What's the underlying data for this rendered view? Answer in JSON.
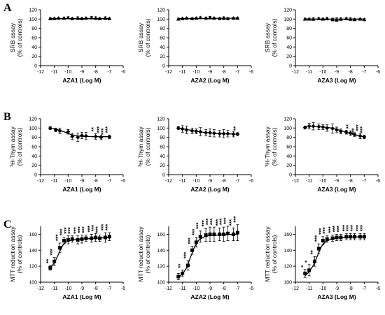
{
  "panel_letters": [
    "A",
    "B",
    "C"
  ],
  "chart_data": [
    {
      "type": "line",
      "row": 0,
      "col": 0,
      "xlabel": "AZA1 (Log M)",
      "ylabel_lines": [
        "SRB assay",
        "(% of controls)"
      ],
      "xlim": [
        -12,
        -6
      ],
      "xticks": [
        -12,
        -11,
        -10,
        -9,
        -8,
        -7,
        -6
      ],
      "ylim": [
        0,
        120
      ],
      "yticks": [
        0,
        20,
        40,
        60,
        80,
        100,
        120
      ],
      "marker": "triangle",
      "x": [
        -11.3,
        -11.0,
        -10.7,
        -10.3,
        -10.0,
        -9.7,
        -9.3,
        -9.0,
        -8.7,
        -8.3,
        -8.0,
        -7.7,
        -7.3,
        -7.0
      ],
      "y": [
        101,
        101,
        102,
        102,
        103,
        101,
        102,
        101,
        102,
        103,
        102,
        101,
        102,
        101
      ],
      "err": [
        2,
        2,
        2,
        2,
        2,
        2,
        3,
        2,
        2,
        3,
        3,
        2,
        3,
        2
      ],
      "fit": [
        [
          -11.3,
          101
        ],
        [
          -7.0,
          101
        ]
      ],
      "stars": []
    },
    {
      "type": "line",
      "row": 0,
      "col": 1,
      "xlabel": "AZA2 (Log M)",
      "ylabel_lines": [
        "SRB assay",
        "(% of controls)"
      ],
      "xlim": [
        -12,
        -6
      ],
      "xticks": [
        -12,
        -11,
        -10,
        -9,
        -8,
        -7,
        -6
      ],
      "ylim": [
        0,
        120
      ],
      "yticks": [
        0,
        20,
        40,
        60,
        80,
        100,
        120
      ],
      "marker": "triangle",
      "x": [
        -11.3,
        -11.0,
        -10.7,
        -10.3,
        -10.0,
        -9.7,
        -9.3,
        -9.0,
        -8.7,
        -8.3,
        -8.0,
        -7.7,
        -7.3,
        -7.0
      ],
      "y": [
        100,
        101,
        102,
        101,
        102,
        103,
        102,
        103,
        102,
        101,
        102,
        101,
        102,
        102
      ],
      "err": [
        2,
        2,
        2,
        2,
        2,
        2,
        2,
        3,
        2,
        2,
        3,
        2,
        2,
        2
      ],
      "fit": [
        [
          -11.3,
          101
        ],
        [
          -7.0,
          102
        ]
      ],
      "stars": []
    },
    {
      "type": "line",
      "row": 0,
      "col": 2,
      "xlabel": "AZA3 (Log M)",
      "ylabel_lines": [
        "SRB assay",
        "(% of controls)"
      ],
      "xlim": [
        -12,
        -6
      ],
      "xticks": [
        -12,
        -11,
        -10,
        -9,
        -8,
        -7,
        -6
      ],
      "ylim": [
        0,
        120
      ],
      "yticks": [
        0,
        20,
        40,
        60,
        80,
        100,
        120
      ],
      "marker": "triangle",
      "x": [
        -11.3,
        -11.0,
        -10.7,
        -10.3,
        -10.0,
        -9.7,
        -9.3,
        -9.0,
        -8.7,
        -8.3,
        -8.0,
        -7.7,
        -7.3,
        -7.0
      ],
      "y": [
        100,
        100,
        100,
        101,
        100,
        101,
        99,
        99,
        100,
        101,
        100,
        99,
        100,
        99
      ],
      "err": [
        2,
        2,
        3,
        2,
        2,
        3,
        3,
        4,
        3,
        2,
        3,
        2,
        2,
        2
      ],
      "fit": [
        [
          -11.3,
          100
        ],
        [
          -7.0,
          100
        ]
      ],
      "stars": []
    },
    {
      "type": "line",
      "row": 1,
      "col": 0,
      "xlabel": "AZA1 (Log M)",
      "ylabel_lines": [
        "³H-Thym assay",
        "(% of controls)"
      ],
      "xlim": [
        -12,
        -6
      ],
      "xticks": [
        -12,
        -11,
        -10,
        -9,
        -8,
        -7,
        -6
      ],
      "ylim": [
        0,
        120
      ],
      "yticks": [
        0,
        20,
        40,
        60,
        80,
        100,
        120
      ],
      "marker": "diamond",
      "x": [
        -11.3,
        -10.9,
        -10.6,
        -10.0,
        -9.7,
        -9.3,
        -9.0,
        -8.7,
        -8.0,
        -7.6,
        -7.0
      ],
      "y": [
        100,
        96,
        94,
        92,
        82,
        80,
        84,
        83,
        82,
        80,
        81
      ],
      "err": [
        3,
        4,
        6,
        5,
        7,
        9,
        7,
        8,
        6,
        5,
        4
      ],
      "fit": [
        [
          -11.3,
          100
        ],
        [
          -10.8,
          97
        ],
        [
          -10.3,
          92
        ],
        [
          -9.8,
          86
        ],
        [
          -9.3,
          83
        ],
        [
          -8.8,
          82
        ],
        [
          -8.0,
          81.5
        ],
        [
          -7.0,
          81.5
        ]
      ],
      "stars": [
        {
          "x": -8.0,
          "text": "**"
        },
        {
          "x": -7.6,
          "text": "***"
        },
        {
          "x": -7.3,
          "text": "***"
        },
        {
          "x": -7.0,
          "text": "***"
        }
      ]
    },
    {
      "type": "line",
      "row": 1,
      "col": 1,
      "xlabel": "AZA2 (Log M)",
      "ylabel_lines": [
        "³H-Thym assay",
        "(% of controls)"
      ],
      "xlim": [
        -12,
        -6
      ],
      "xticks": [
        -12,
        -11,
        -10,
        -9,
        -8,
        -7,
        -6
      ],
      "ylim": [
        0,
        120
      ],
      "yticks": [
        0,
        20,
        40,
        60,
        80,
        100,
        120
      ],
      "marker": "diamond",
      "x": [
        -11.3,
        -11.0,
        -10.7,
        -10.3,
        -10.0,
        -9.7,
        -9.3,
        -9.0,
        -8.7,
        -8.3,
        -8.0,
        -7.7,
        -7.3,
        -7.0
      ],
      "y": [
        100,
        98,
        96,
        94,
        93,
        92,
        90,
        90,
        89,
        88,
        88,
        88,
        87,
        87
      ],
      "err": [
        3,
        7,
        8,
        6,
        5,
        9,
        7,
        8,
        8,
        7,
        9,
        7,
        6,
        3
      ],
      "fit": [
        [
          -11.3,
          100
        ],
        [
          -10.5,
          96
        ],
        [
          -9.5,
          91
        ],
        [
          -8.5,
          88
        ],
        [
          -7.0,
          87
        ]
      ],
      "stars": [
        {
          "x": -7.0,
          "text": "**"
        }
      ]
    },
    {
      "type": "line",
      "row": 1,
      "col": 2,
      "xlabel": "AZA3 (Log M)",
      "ylabel_lines": [
        "³H-Thym assay",
        "(% of controls)"
      ],
      "xlim": [
        -12,
        -6
      ],
      "xticks": [
        -12,
        -11,
        -10,
        -9,
        -8,
        -7,
        -6
      ],
      "ylim": [
        0,
        120
      ],
      "yticks": [
        0,
        20,
        40,
        60,
        80,
        100,
        120
      ],
      "marker": "diamond",
      "x": [
        -11.3,
        -11.0,
        -10.7,
        -10.3,
        -10.0,
        -9.7,
        -9.3,
        -9.0,
        -8.7,
        -8.3,
        -8.0,
        -7.7,
        -7.3,
        -7.0
      ],
      "y": [
        101,
        104,
        104,
        103,
        102,
        100,
        99,
        96,
        93,
        91,
        89,
        86,
        83,
        81
      ],
      "err": [
        3,
        6,
        8,
        6,
        5,
        7,
        10,
        6,
        5,
        4,
        5,
        4,
        6,
        4
      ],
      "fit": [
        [
          -11.3,
          104
        ],
        [
          -10.3,
          103.5
        ],
        [
          -9.3,
          100
        ],
        [
          -8.6,
          94
        ],
        [
          -8.0,
          88
        ],
        [
          -7.5,
          84
        ],
        [
          -7.0,
          81
        ]
      ],
      "stars": [
        {
          "x": -8.0,
          "text": "**"
        },
        {
          "x": -7.6,
          "text": "***"
        },
        {
          "x": -7.3,
          "text": "***"
        },
        {
          "x": -7.0,
          "text": "***"
        }
      ]
    },
    {
      "type": "line",
      "row": 2,
      "col": 0,
      "xlabel": "AZA1 (Log M)",
      "ylabel_lines": [
        "MTT reduction assay",
        "(% of controls)"
      ],
      "xlim": [
        -12,
        -6
      ],
      "xticks": [
        -12,
        -11,
        -10,
        -9,
        -8,
        -7,
        -6
      ],
      "ylim": [
        100,
        170
      ],
      "yticks": [
        100,
        120,
        140,
        160
      ],
      "marker": "square",
      "x": [
        -11.3,
        -11.0,
        -10.6,
        -10.3,
        -10.0,
        -9.7,
        -9.3,
        -9.0,
        -8.7,
        -8.3,
        -8.0,
        -7.7,
        -7.3,
        -7.0
      ],
      "y": [
        118,
        126,
        143,
        152,
        153,
        154,
        153,
        154,
        155,
        155,
        156,
        155,
        156,
        157
      ],
      "err": [
        3,
        5,
        6,
        4,
        5,
        4,
        5,
        5,
        4,
        5,
        5,
        4,
        6,
        5
      ],
      "fit": [
        [
          -11.3,
          118
        ],
        [
          -11.0,
          124
        ],
        [
          -10.7,
          135
        ],
        [
          -10.4,
          146
        ],
        [
          -10.1,
          151
        ],
        [
          -9.7,
          153
        ],
        [
          -9.0,
          154
        ],
        [
          -8.0,
          155
        ],
        [
          -7.0,
          156
        ]
      ],
      "stars": [
        {
          "x": -11.3,
          "text": "**"
        },
        {
          "x": -11.0,
          "text": "***"
        },
        {
          "x": -10.6,
          "text": "***"
        },
        {
          "x": -10.3,
          "text": "***"
        },
        {
          "x": -10.0,
          "text": "***"
        },
        {
          "x": -9.7,
          "text": "***"
        },
        {
          "x": -9.3,
          "text": "***"
        },
        {
          "x": -9.0,
          "text": "***"
        },
        {
          "x": -8.7,
          "text": "***"
        },
        {
          "x": -8.3,
          "text": "***"
        },
        {
          "x": -8.0,
          "text": "***"
        },
        {
          "x": -7.7,
          "text": "***"
        },
        {
          "x": -7.3,
          "text": "***"
        },
        {
          "x": -7.0,
          "text": "***"
        }
      ]
    },
    {
      "type": "line",
      "row": 2,
      "col": 1,
      "xlabel": "AZA2 (Log M)",
      "ylabel_lines": [
        "MTT reduction assay",
        "(% of controls)"
      ],
      "xlim": [
        -12,
        -6
      ],
      "xticks": [
        -12,
        -11,
        -10,
        -9,
        -8,
        -7,
        -6
      ],
      "ylim": [
        100,
        170
      ],
      "yticks": [
        100,
        120,
        140,
        160
      ],
      "marker": "square",
      "x": [
        -11.3,
        -11.0,
        -10.6,
        -10.3,
        -10.0,
        -9.7,
        -9.3,
        -9.0,
        -8.7,
        -8.3,
        -8.0,
        -7.7,
        -7.3,
        -7.0
      ],
      "y": [
        107,
        111,
        121,
        140,
        150,
        157,
        159,
        160,
        160,
        160,
        160,
        161,
        160,
        162
      ],
      "err": [
        4,
        4,
        6,
        5,
        6,
        7,
        8,
        9,
        9,
        8,
        9,
        9,
        8,
        10
      ],
      "fit": [
        [
          -11.3,
          106
        ],
        [
          -11.0,
          110
        ],
        [
          -10.7,
          118
        ],
        [
          -10.4,
          132
        ],
        [
          -10.1,
          145
        ],
        [
          -9.8,
          153
        ],
        [
          -9.4,
          157
        ],
        [
          -9.0,
          158.5
        ],
        [
          -8.0,
          159.5
        ],
        [
          -7.0,
          160
        ]
      ],
      "stars": [
        {
          "x": -11.0,
          "text": "**"
        },
        {
          "x": -10.6,
          "text": "***"
        },
        {
          "x": -10.3,
          "text": "***"
        },
        {
          "x": -10.0,
          "text": "***"
        },
        {
          "x": -9.7,
          "text": "***"
        },
        {
          "x": -9.3,
          "text": "***"
        },
        {
          "x": -9.0,
          "text": "***"
        },
        {
          "x": -8.7,
          "text": "***"
        },
        {
          "x": -8.3,
          "text": "***"
        },
        {
          "x": -8.0,
          "text": "***"
        },
        {
          "x": -7.7,
          "text": "***"
        },
        {
          "x": -7.3,
          "text": "***"
        },
        {
          "x": -7.0,
          "text": "***"
        }
      ]
    },
    {
      "type": "line",
      "row": 2,
      "col": 2,
      "xlabel": "AZA3 (Log M)",
      "ylabel_lines": [
        "MTT reduction assay",
        "(% of controls)"
      ],
      "xlim": [
        -12,
        -6
      ],
      "xticks": [
        -12,
        -11,
        -10,
        -9,
        -8,
        -7,
        -6
      ],
      "ylim": [
        100,
        170
      ],
      "yticks": [
        100,
        120,
        140,
        160
      ],
      "marker": "square",
      "x": [
        -11.3,
        -11.0,
        -10.6,
        -10.3,
        -10.0,
        -9.7,
        -9.3,
        -9.0,
        -8.7,
        -8.3,
        -8.0,
        -7.7,
        -7.3,
        -7.0
      ],
      "y": [
        111,
        115,
        126,
        142,
        152,
        154,
        155,
        156,
        156,
        157,
        157,
        157,
        157,
        157
      ],
      "err": [
        5,
        7,
        6,
        6,
        5,
        4,
        4,
        4,
        4,
        4,
        4,
        4,
        4,
        4
      ],
      "fit": [
        [
          -11.3,
          108
        ],
        [
          -11.0,
          113
        ],
        [
          -10.7,
          121
        ],
        [
          -10.4,
          133
        ],
        [
          -10.1,
          145
        ],
        [
          -9.8,
          151
        ],
        [
          -9.4,
          154
        ],
        [
          -9.0,
          155.5
        ],
        [
          -8.0,
          156.5
        ],
        [
          -7.0,
          157
        ]
      ],
      "stars": [
        {
          "x": -11.3,
          "text": "*"
        },
        {
          "x": -11.0,
          "text": "*"
        },
        {
          "x": -10.6,
          "text": "**"
        },
        {
          "x": -10.3,
          "text": "***"
        },
        {
          "x": -10.0,
          "text": "***"
        },
        {
          "x": -9.7,
          "text": "***"
        },
        {
          "x": -9.3,
          "text": "***"
        },
        {
          "x": -9.0,
          "text": "***"
        },
        {
          "x": -8.7,
          "text": "***"
        },
        {
          "x": -8.3,
          "text": "***"
        },
        {
          "x": -8.0,
          "text": "***"
        },
        {
          "x": -7.7,
          "text": "***"
        },
        {
          "x": -7.3,
          "text": "***"
        },
        {
          "x": -7.0,
          "text": "***"
        }
      ]
    }
  ]
}
